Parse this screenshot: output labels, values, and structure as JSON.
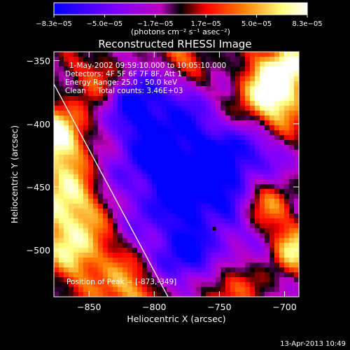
{
  "chart_data": {
    "type": "heatmap",
    "title": "Reconstructed RHESSI Image",
    "xlabel": "Heliocentric X (arcsec)",
    "ylabel": "Heliocentric Y (arcsec)",
    "xlim": [
      -877,
      -689
    ],
    "ylim": [
      -537,
      -343
    ],
    "x_ticks": [
      -850,
      -800,
      -750,
      -700
    ],
    "y_ticks": [
      -350,
      -400,
      -450,
      -500
    ],
    "x_tick_labels": [
      "−850",
      "−800",
      "−750",
      "−700"
    ],
    "y_tick_labels": [
      "−350",
      "−400",
      "−450",
      "−500"
    ],
    "annotations": [
      "1-May-2002 09:59:10.000 to 10:05:10.000",
      "Detectors: 4F 5F 6F 7F 8F, Att 1",
      "Energy Range: 25.0 - 50.0 keV",
      "Clean     Total counts: 3.46E+03"
    ],
    "peak_label": "Position of Peak = [-873,-349]",
    "peak_position": [
      -873,
      -349
    ],
    "min_marker": [
      -754,
      -483
    ],
    "colorbar": {
      "label": "(photons cm⁻² s⁻¹ asec⁻²)",
      "range": [
        -8.3e-05,
        8.3e-05
      ],
      "tick_labels": [
        "−8.3e−05",
        "−5.0e−05",
        "−1.7e−05",
        "1.7e−05",
        "5.0e−05",
        "8.3e−05"
      ],
      "colors": [
        "#0000ff",
        "#7f00ff",
        "#bf00bf",
        "#000000",
        "#ff0000",
        "#ff8000",
        "#ffff80",
        "#ffffff"
      ]
    },
    "grid": false
  },
  "footer": {
    "date": "13-Apr-2013 10:49"
  }
}
